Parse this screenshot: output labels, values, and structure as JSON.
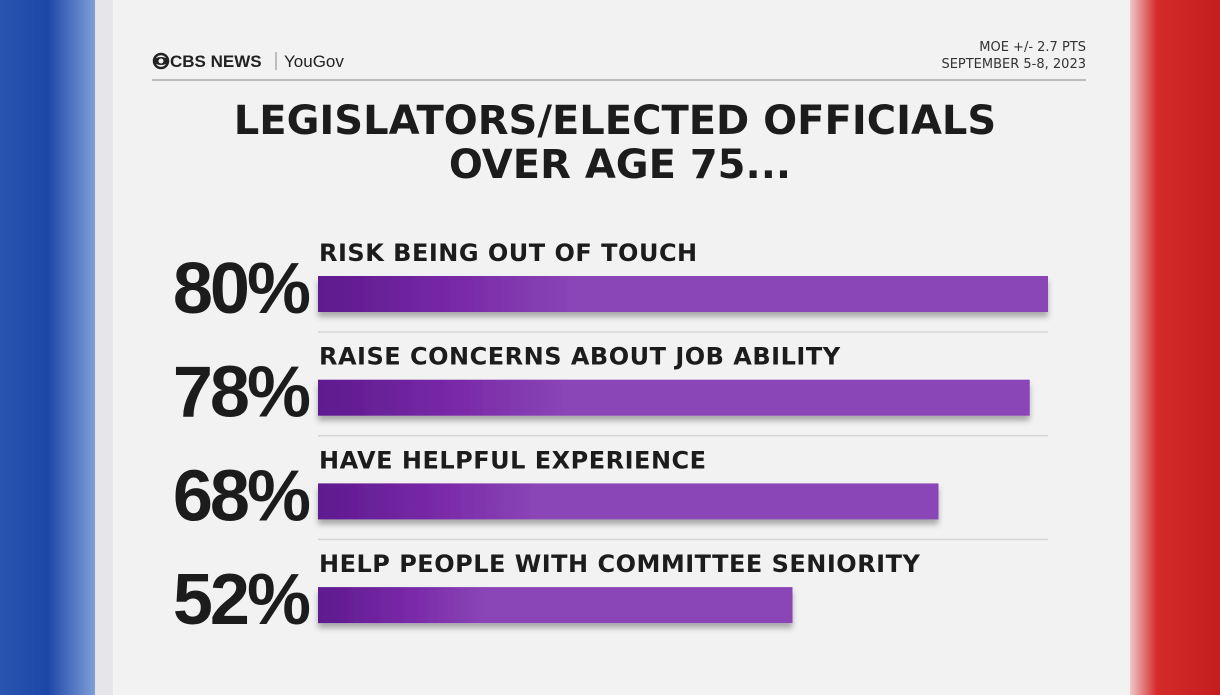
{
  "chart_data": {
    "type": "bar",
    "orientation": "horizontal",
    "logo": "CBS NEWS",
    "partner": "YouGov",
    "moe": "MOE +/- 2.7 PTS",
    "date": "SEPTEMBER 5-8, 2023",
    "title": [
      "LEGISLATORS/ELECTED OFFICIALS",
      "OVER AGE 75..."
    ],
    "categories": [
      "RISK BEING OUT OF TOUCH",
      "RAISE CONCERNS ABOUT JOB ABILITY",
      "HAVE HELPFUL EXPERIENCE",
      "HELP PEOPLE WITH COMMITTEE SENIORITY"
    ],
    "values": [
      80,
      78,
      68,
      52
    ],
    "value_labels": [
      "80%",
      "78%",
      "68%",
      "52%"
    ],
    "color": "#8a45b6",
    "xlim": [
      0,
      100
    ]
  }
}
